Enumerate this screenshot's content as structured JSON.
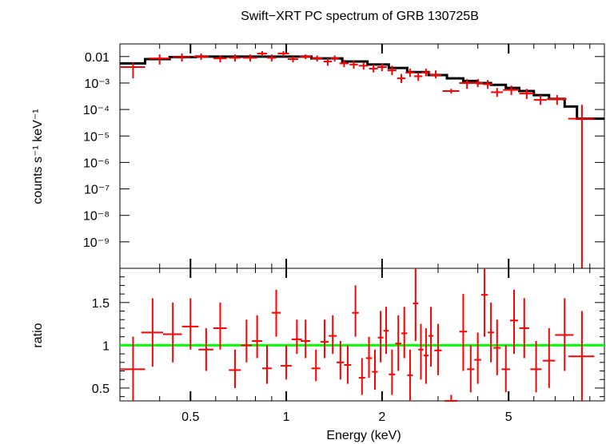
{
  "chart_data": [
    {
      "type": "scatter",
      "title": "Swift−XRT PC spectrum of GRB 130725B",
      "ylabel": "counts s⁻¹ keV⁻¹",
      "xscale": "log",
      "yscale": "log",
      "xlim": [
        0.3,
        10
      ],
      "ylim": [
        1e-10,
        0.03
      ],
      "ytick_labels": [
        "0.01",
        "10⁻³",
        "10⁻⁴",
        "10⁻⁵",
        "10⁻⁶",
        "10⁻⁷",
        "10⁻⁸",
        "10⁻⁹"
      ],
      "data_color": "#ff0000",
      "model_color": "#000000",
      "series": [
        {
          "kind": "data",
          "x": [
            0.33,
            0.4,
            0.47,
            0.54,
            0.62,
            0.69,
            0.77,
            0.84,
            0.9,
            0.98,
            1.05,
            1.15,
            1.25,
            1.35,
            1.42,
            1.52,
            1.63,
            1.75,
            1.88,
            2.0,
            2.15,
            2.3,
            2.45,
            2.6,
            2.75,
            2.95,
            3.3,
            3.7,
            4.0,
            4.3,
            4.6,
            5.1,
            5.7,
            6.3,
            7.1,
            8.5
          ],
          "xerr": [
            0.03,
            0.03,
            0.03,
            0.03,
            0.03,
            0.03,
            0.04,
            0.03,
            0.03,
            0.04,
            0.04,
            0.05,
            0.05,
            0.04,
            0.04,
            0.05,
            0.05,
            0.06,
            0.06,
            0.07,
            0.07,
            0.07,
            0.08,
            0.08,
            0.09,
            0.12,
            0.2,
            0.2,
            0.15,
            0.15,
            0.2,
            0.3,
            0.3,
            0.3,
            0.5,
            0.8
          ],
          "y": [
            0.004,
            0.0085,
            0.0095,
            0.01,
            0.0085,
            0.009,
            0.009,
            0.013,
            0.009,
            0.013,
            0.008,
            0.01,
            0.0085,
            0.0065,
            0.0085,
            0.0055,
            0.005,
            0.0045,
            0.0035,
            0.004,
            0.003,
            0.0015,
            0.0025,
            0.0018,
            0.0025,
            0.002,
            0.0005,
            0.001,
            0.001,
            0.0009,
            0.00045,
            0.00055,
            0.0004,
            0.00023,
            0.00025,
            4.5e-05
          ],
          "ylo": [
            0.0015,
            0.005,
            0.0065,
            0.0075,
            0.006,
            0.0065,
            0.0065,
            0.01,
            0.0065,
            0.01,
            0.006,
            0.008,
            0.0065,
            0.0045,
            0.0065,
            0.004,
            0.0035,
            0.0032,
            0.0025,
            0.0028,
            0.002,
            0.001,
            0.0017,
            0.0012,
            0.0018,
            0.0015,
            0.0004,
            0.0006,
            0.0007,
            0.0006,
            0.0003,
            0.00035,
            0.00025,
            0.00015,
            0.00015,
            1e-10
          ],
          "yhi": [
            0.006,
            0.012,
            0.013,
            0.013,
            0.011,
            0.012,
            0.012,
            0.016,
            0.012,
            0.016,
            0.01,
            0.012,
            0.011,
            0.0085,
            0.011,
            0.0075,
            0.007,
            0.006,
            0.005,
            0.0055,
            0.0045,
            0.0022,
            0.0035,
            0.0025,
            0.0035,
            0.003,
            0.0006,
            0.0014,
            0.0014,
            0.0013,
            0.00065,
            0.0008,
            0.0006,
            0.00035,
            0.00035,
            0.00015
          ]
        },
        {
          "kind": "model",
          "x": [
            0.3,
            0.36,
            0.43,
            0.52,
            0.75,
            1.0,
            1.2,
            1.5,
            1.8,
            2.1,
            2.4,
            2.8,
            3.2,
            3.6,
            4.0,
            4.4,
            4.9,
            5.4,
            6.0,
            6.7,
            7.5,
            8.2,
            10.0
          ],
          "y": [
            0.0055,
            0.008,
            0.0095,
            0.01,
            0.01,
            0.01,
            0.0085,
            0.0065,
            0.005,
            0.0037,
            0.0026,
            0.002,
            0.0015,
            0.0012,
            0.001,
            0.00085,
            0.00065,
            0.0005,
            0.00035,
            0.00025,
            0.00013,
            4.5e-05,
            4.5e-05
          ]
        }
      ]
    },
    {
      "type": "scatter",
      "xlabel": "Energy (keV)",
      "ylabel": "ratio",
      "xscale": "log",
      "xlim": [
        0.3,
        10
      ],
      "ylim": [
        0.35,
        1.9
      ],
      "xtick_labels": [
        "0.5",
        "1",
        "2",
        "5"
      ],
      "ytick_labels": [
        "0.5",
        "1",
        "1.5"
      ],
      "reference_line": {
        "y": 1,
        "color": "#00ff00"
      },
      "series": [
        {
          "kind": "ratio",
          "x": [
            0.33,
            0.38,
            0.44,
            0.5,
            0.56,
            0.62,
            0.69,
            0.75,
            0.81,
            0.87,
            0.93,
            1.0,
            1.08,
            1.15,
            1.24,
            1.32,
            1.4,
            1.48,
            1.56,
            1.65,
            1.73,
            1.82,
            1.9,
            1.98,
            2.06,
            2.15,
            2.25,
            2.35,
            2.45,
            2.55,
            2.65,
            2.75,
            2.85,
            3.0,
            3.3,
            3.6,
            3.8,
            4.0,
            4.2,
            4.4,
            4.6,
            4.9,
            5.2,
            5.6,
            6.1,
            6.7,
            7.5,
            8.5
          ],
          "xerr": [
            0.03,
            0.03,
            0.03,
            0.03,
            0.03,
            0.03,
            0.03,
            0.03,
            0.03,
            0.03,
            0.03,
            0.04,
            0.04,
            0.04,
            0.04,
            0.04,
            0.04,
            0.04,
            0.04,
            0.04,
            0.04,
            0.04,
            0.04,
            0.04,
            0.04,
            0.05,
            0.05,
            0.05,
            0.05,
            0.05,
            0.05,
            0.05,
            0.05,
            0.08,
            0.15,
            0.1,
            0.1,
            0.1,
            0.1,
            0.1,
            0.12,
            0.15,
            0.15,
            0.2,
            0.25,
            0.3,
            0.5,
            0.8
          ],
          "y": [
            0.72,
            1.15,
            1.13,
            1.22,
            0.95,
            1.2,
            0.71,
            1.0,
            1.05,
            0.73,
            1.38,
            0.76,
            1.07,
            1.05,
            0.73,
            1.04,
            1.11,
            0.8,
            0.77,
            1.38,
            0.62,
            0.85,
            0.69,
            1.09,
            1.17,
            0.66,
            1.02,
            1.14,
            0.65,
            1.49,
            0.95,
            0.88,
            1.11,
            0.94,
            0.35,
            1.16,
            0.72,
            0.83,
            1.59,
            1.15,
            0.97,
            0.72,
            1.29,
            1.2,
            0.72,
            0.82,
            1.12,
            0.87
          ],
          "ylo": [
            0.35,
            0.75,
            0.8,
            0.95,
            0.7,
            0.95,
            0.5,
            0.8,
            0.85,
            0.55,
            1.1,
            0.6,
            0.9,
            0.85,
            0.58,
            0.85,
            0.9,
            0.6,
            0.55,
            1.1,
            0.42,
            0.62,
            0.48,
            0.8,
            0.9,
            0.42,
            0.7,
            0.85,
            0.35,
            1.05,
            0.6,
            0.55,
            0.75,
            0.65,
            0.35,
            0.7,
            0.45,
            0.55,
            1.1,
            0.8,
            0.65,
            0.45,
            0.9,
            0.85,
            0.45,
            0.5,
            0.7,
            0.35
          ],
          "yhi": [
            1.1,
            1.55,
            1.5,
            1.55,
            1.2,
            1.5,
            0.95,
            1.3,
            1.35,
            1.0,
            1.65,
            1.0,
            1.3,
            1.3,
            0.95,
            1.3,
            1.35,
            1.05,
            1.0,
            1.7,
            0.85,
            1.1,
            0.95,
            1.4,
            1.45,
            0.95,
            1.35,
            1.45,
            0.95,
            1.9,
            1.25,
            1.2,
            1.45,
            1.25,
            0.42,
            1.6,
            1.0,
            1.15,
            1.9,
            1.5,
            1.3,
            1.0,
            1.65,
            1.55,
            1.05,
            1.2,
            1.55,
            1.4
          ]
        }
      ]
    }
  ]
}
